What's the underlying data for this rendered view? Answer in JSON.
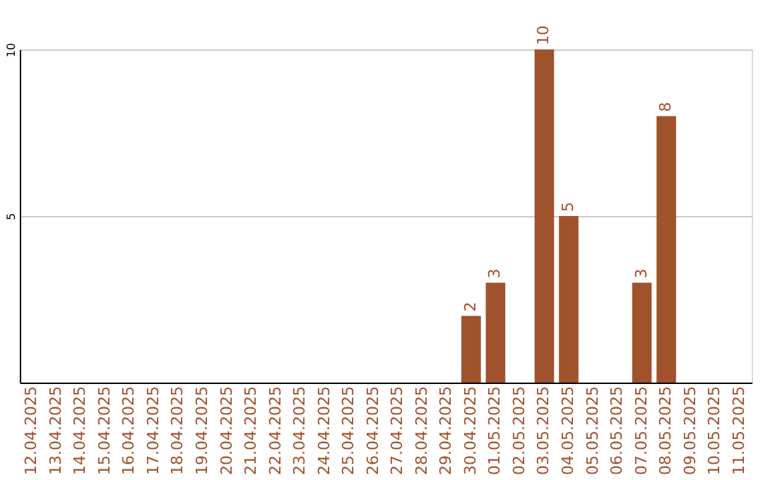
{
  "chart_data": {
    "type": "bar",
    "categories": [
      "12.04.2025",
      "13.04.2025",
      "14.04.2025",
      "15.04.2025",
      "16.04.2025",
      "17.04.2025",
      "18.04.2025",
      "19.04.2025",
      "20.04.2025",
      "21.04.2025",
      "22.04.2025",
      "23.04.2025",
      "24.04.2025",
      "25.04.2025",
      "26.04.2025",
      "27.04.2025",
      "28.04.2025",
      "29.04.2025",
      "30.04.2025",
      "01.05.2025",
      "02.05.2025",
      "03.05.2025",
      "04.05.2025",
      "05.05.2025",
      "06.05.2025",
      "07.05.2025",
      "08.05.2025",
      "09.05.2025",
      "10.05.2025",
      "11.05.2025"
    ],
    "values": [
      0,
      0,
      0,
      0,
      0,
      0,
      0,
      0,
      0,
      0,
      0,
      0,
      0,
      0,
      0,
      0,
      0,
      0,
      2,
      3,
      0,
      10,
      5,
      0,
      0,
      3,
      8,
      0,
      0,
      0
    ],
    "value_labels": [
      null,
      null,
      null,
      null,
      null,
      null,
      null,
      null,
      null,
      null,
      null,
      null,
      null,
      null,
      null,
      null,
      null,
      null,
      "2",
      "3",
      null,
      "10",
      "5",
      null,
      null,
      "3",
      "8",
      null,
      null,
      null
    ],
    "color": "#a0522d",
    "ylim": [
      0,
      10
    ],
    "yticks": [
      5,
      10
    ],
    "grid": "y"
  }
}
